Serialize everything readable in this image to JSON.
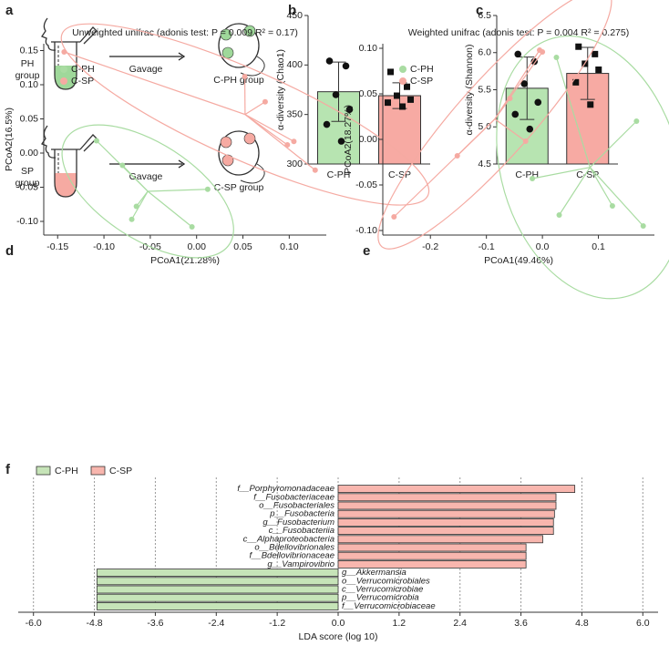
{
  "panel_labels": [
    "a",
    "b",
    "c",
    "d",
    "e",
    "f"
  ],
  "diagram": {
    "groups": [
      {
        "label_lines": [
          "PH",
          "group"
        ],
        "action": "Gavage",
        "result": "C-PH group",
        "color": "#9fd89a"
      },
      {
        "label_lines": [
          "SP",
          "group"
        ],
        "action": "Gavage",
        "result": "C-SP group",
        "color": "#f6aaa2"
      }
    ]
  },
  "chart_data": [
    {
      "type": "bar",
      "ylabel": "α-diversity (Chao1)",
      "categories": [
        "C-PH",
        "C-SP"
      ],
      "values": [
        373,
        369
      ],
      "errors": [
        30,
        13
      ],
      "colors": [
        "#b7e4b1",
        "#f7aaa3"
      ],
      "markers": [
        "circle",
        "square"
      ],
      "points": [
        [
          404,
          399,
          370,
          355,
          340,
          323
        ],
        [
          393,
          378,
          369,
          365,
          362,
          358
        ]
      ],
      "ylim": [
        300,
        450
      ],
      "yticks": [
        300,
        350,
        400,
        450
      ]
    },
    {
      "type": "bar",
      "ylabel": "α-diversity (Shannon)",
      "categories": [
        "C-PH",
        "C-SP"
      ],
      "values": [
        5.52,
        5.72
      ],
      "errors": [
        0.42,
        0.35
      ],
      "colors": [
        "#b7e4b1",
        "#f7aaa3"
      ],
      "markers": [
        "circle",
        "square"
      ],
      "points": [
        [
          5.98,
          5.88,
          5.58,
          5.33,
          5.17,
          4.97
        ],
        [
          6.08,
          5.98,
          5.85,
          5.77,
          5.6,
          5.3
        ]
      ],
      "ylim": [
        4.5,
        6.5
      ],
      "yticks": [
        4.5,
        {
          "value": 5,
          "label": "5.0"
        },
        5.5,
        {
          "value": 6,
          "label": "6.0"
        },
        6.5
      ]
    },
    {
      "type": "scatter",
      "title": "Unweighted unifrac (adonis test: P = 0.009 R² = 0.17)",
      "xlabel": "PCoA1(21.28%)",
      "ylabel": "PCoA2(16.5%)",
      "legend": "upper left",
      "series": [
        {
          "name": "C-PH",
          "color": "#a9dca2",
          "x": [
            -0.108,
            -0.08,
            -0.065,
            -0.07,
            -0.005,
            0.012
          ],
          "y": [
            0.018,
            -0.018,
            -0.078,
            -0.097,
            -0.108,
            -0.053
          ]
        },
        {
          "name": "C-SP",
          "color": "#f5aaa2",
          "x": [
            -0.143,
            0.052,
            0.074,
            0.098,
            0.105,
            0.128
          ],
          "y": [
            0.148,
            0.112,
            0.075,
            0.012,
            0.017,
            -0.025
          ]
        }
      ],
      "xlim": [
        -0.165,
        0.14
      ],
      "ylim": [
        -0.12,
        0.16
      ],
      "xticks": [
        -0.15,
        {
          "value": -0.1,
          "label": "-0.10"
        },
        -0.05,
        {
          "value": 0,
          "label": "0.00"
        },
        0.05,
        {
          "value": 0.1,
          "label": "0.10"
        }
      ],
      "yticks": [
        {
          "value": -0.1,
          "label": "-0.10"
        },
        -0.05,
        {
          "value": 0,
          "label": "0.00"
        },
        0.05,
        {
          "value": 0.1,
          "label": "0.10"
        },
        0.15
      ]
    },
    {
      "type": "scatter",
      "title": "Weighted unifrac (adonis test: P = 0.004 R² = 0.275)",
      "xlabel": "PCoA1(49.46%)",
      "ylabel": "PCoA2(18.27%)",
      "legend": "upper left",
      "series": [
        {
          "name": "C-PH",
          "color": "#a9dca2",
          "x": [
            0.025,
            -0.018,
            0.03,
            0.125,
            0.18,
            0.168
          ],
          "y": [
            0.09,
            -0.043,
            -0.083,
            -0.073,
            -0.095,
            0.02
          ]
        },
        {
          "name": "C-SP",
          "color": "#f5aaa2",
          "x": [
            -0.265,
            -0.152,
            -0.058,
            -0.03,
            -0.005,
            0.0
          ],
          "y": [
            -0.085,
            -0.018,
            0.045,
            -0.002,
            0.098,
            0.096
          ]
        }
      ],
      "xlim": [
        -0.285,
        0.2
      ],
      "ylim": [
        -0.105,
        0.105
      ],
      "xticks": [
        -0.2,
        -0.1,
        {
          "value": 0,
          "label": "0.0"
        },
        0.1
      ],
      "yticks": [
        {
          "value": -0.1,
          "label": "-0.10"
        },
        -0.05,
        {
          "value": 0,
          "label": "0.00"
        },
        0.05,
        {
          "value": 0.1,
          "label": "0.10"
        }
      ]
    },
    {
      "type": "bar",
      "orientation": "horizontal",
      "xlabel": "LDA score (log 10)",
      "legend": "upper left",
      "categories": [
        "f__Porphyromonadaceae",
        "f__Fusobacteriaceae",
        "o__Fusobacteriales",
        "p__Fusobacteria",
        "g__Fusobacterium",
        "c__Fusobacteriia",
        "c__Alphaproteobacteria",
        "o__Bdellovibrionales",
        "f__Bdellovibrionaceae",
        "g__Vampirovibrio",
        "g__Akkermansia",
        "o__Verrucomicrobiales",
        "c__Verrucomicrobiae",
        "p__Verrucomicrobia",
        "f__Verrucomicrobiaceae"
      ],
      "series": [
        {
          "name": "C-PH",
          "color": "#c6e4b8",
          "values": [
            null,
            null,
            null,
            null,
            null,
            null,
            null,
            null,
            null,
            null,
            -4.75,
            -4.75,
            -4.75,
            -4.75,
            -4.75
          ]
        },
        {
          "name": "C-SP",
          "color": "#f8b6ae",
          "values": [
            4.66,
            4.29,
            4.29,
            4.26,
            4.24,
            4.24,
            4.03,
            3.7,
            3.7,
            3.7,
            null,
            null,
            null,
            null,
            null
          ]
        }
      ],
      "xlim": [
        -6.3,
        6.3
      ],
      "xticks": [
        {
          "value": -6,
          "label": "-6.0"
        },
        -4.8,
        -3.6,
        -2.4,
        -1.2,
        {
          "value": 0,
          "label": "0.0"
        },
        1.2,
        2.4,
        3.6,
        4.8,
        {
          "value": 6,
          "label": "6.0"
        }
      ],
      "grid": true
    }
  ]
}
